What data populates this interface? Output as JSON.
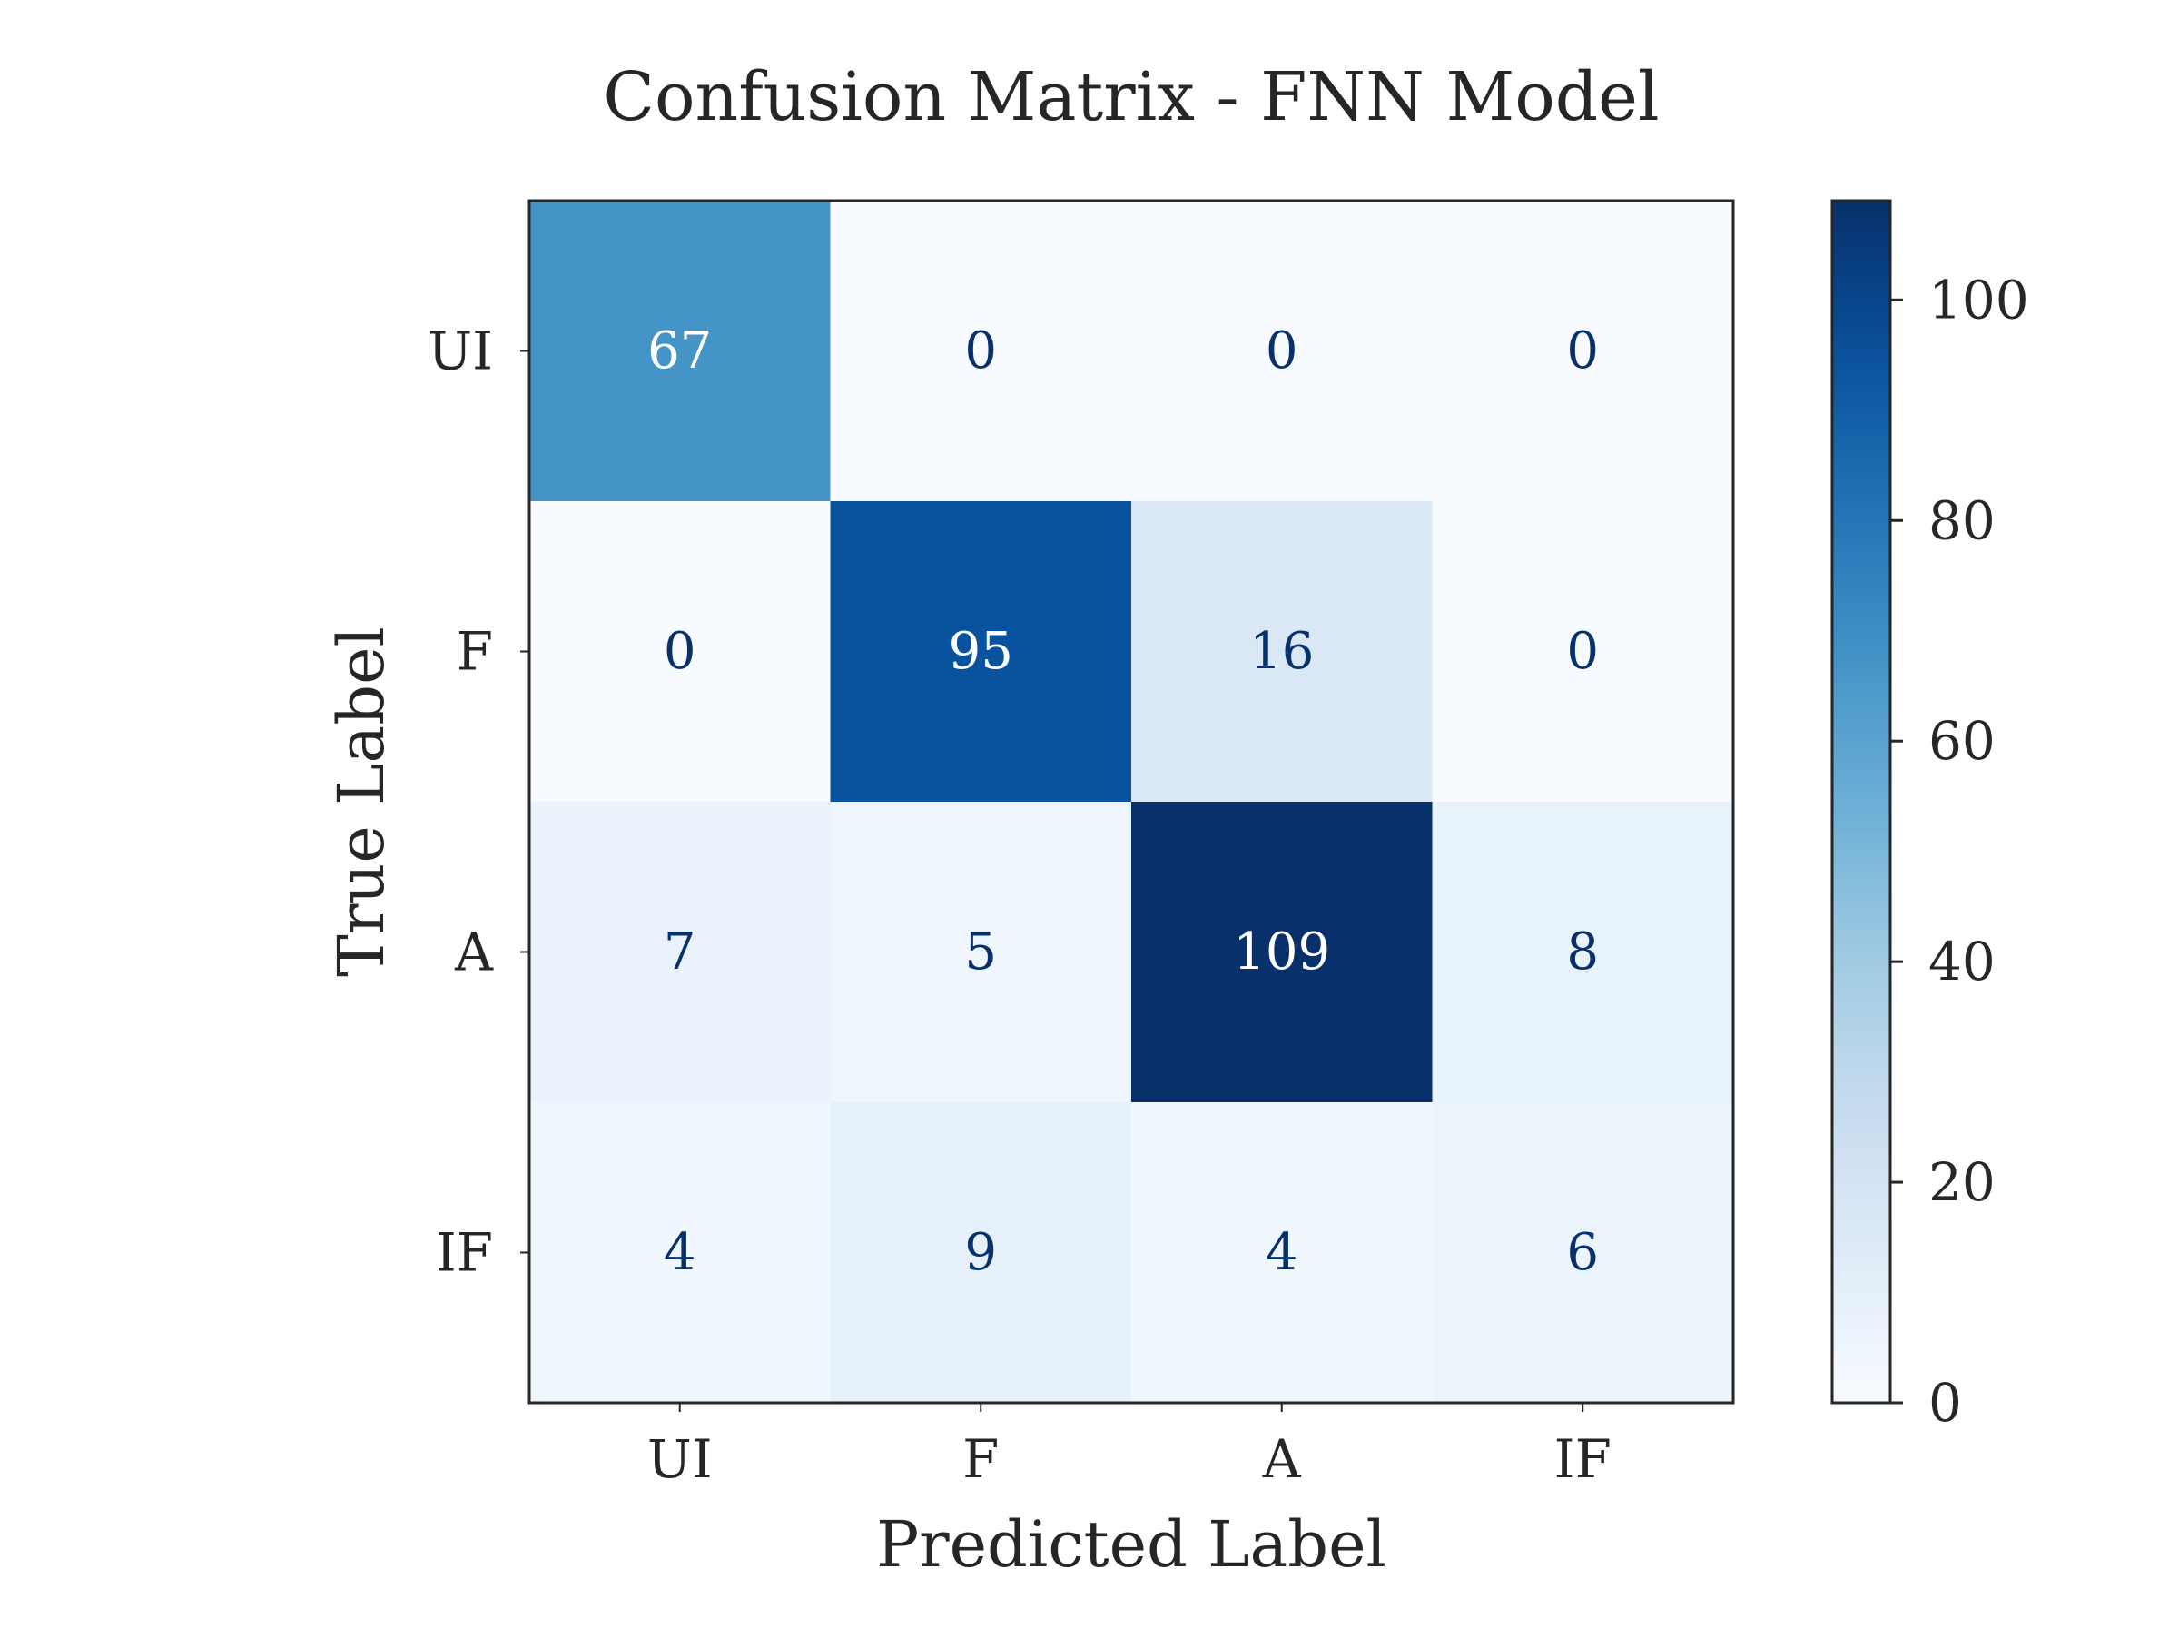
{
  "chart_data": {
    "type": "heatmap",
    "title": "Confusion Matrix - FNN Model",
    "xlabel": "Predicted Label",
    "ylabel": "True Label",
    "x_categories": [
      "UI",
      "F",
      "A",
      "IF"
    ],
    "y_categories": [
      "UI",
      "F",
      "A",
      "IF"
    ],
    "matrix": [
      [
        67,
        0,
        0,
        0
      ],
      [
        0,
        95,
        16,
        0
      ],
      [
        7,
        5,
        109,
        8
      ],
      [
        4,
        9,
        4,
        6
      ]
    ],
    "colormap": "Blues",
    "colorbar": {
      "range": [
        0,
        109
      ],
      "ticks": [
        0,
        20,
        40,
        60,
        80,
        100
      ]
    },
    "grid": false
  }
}
